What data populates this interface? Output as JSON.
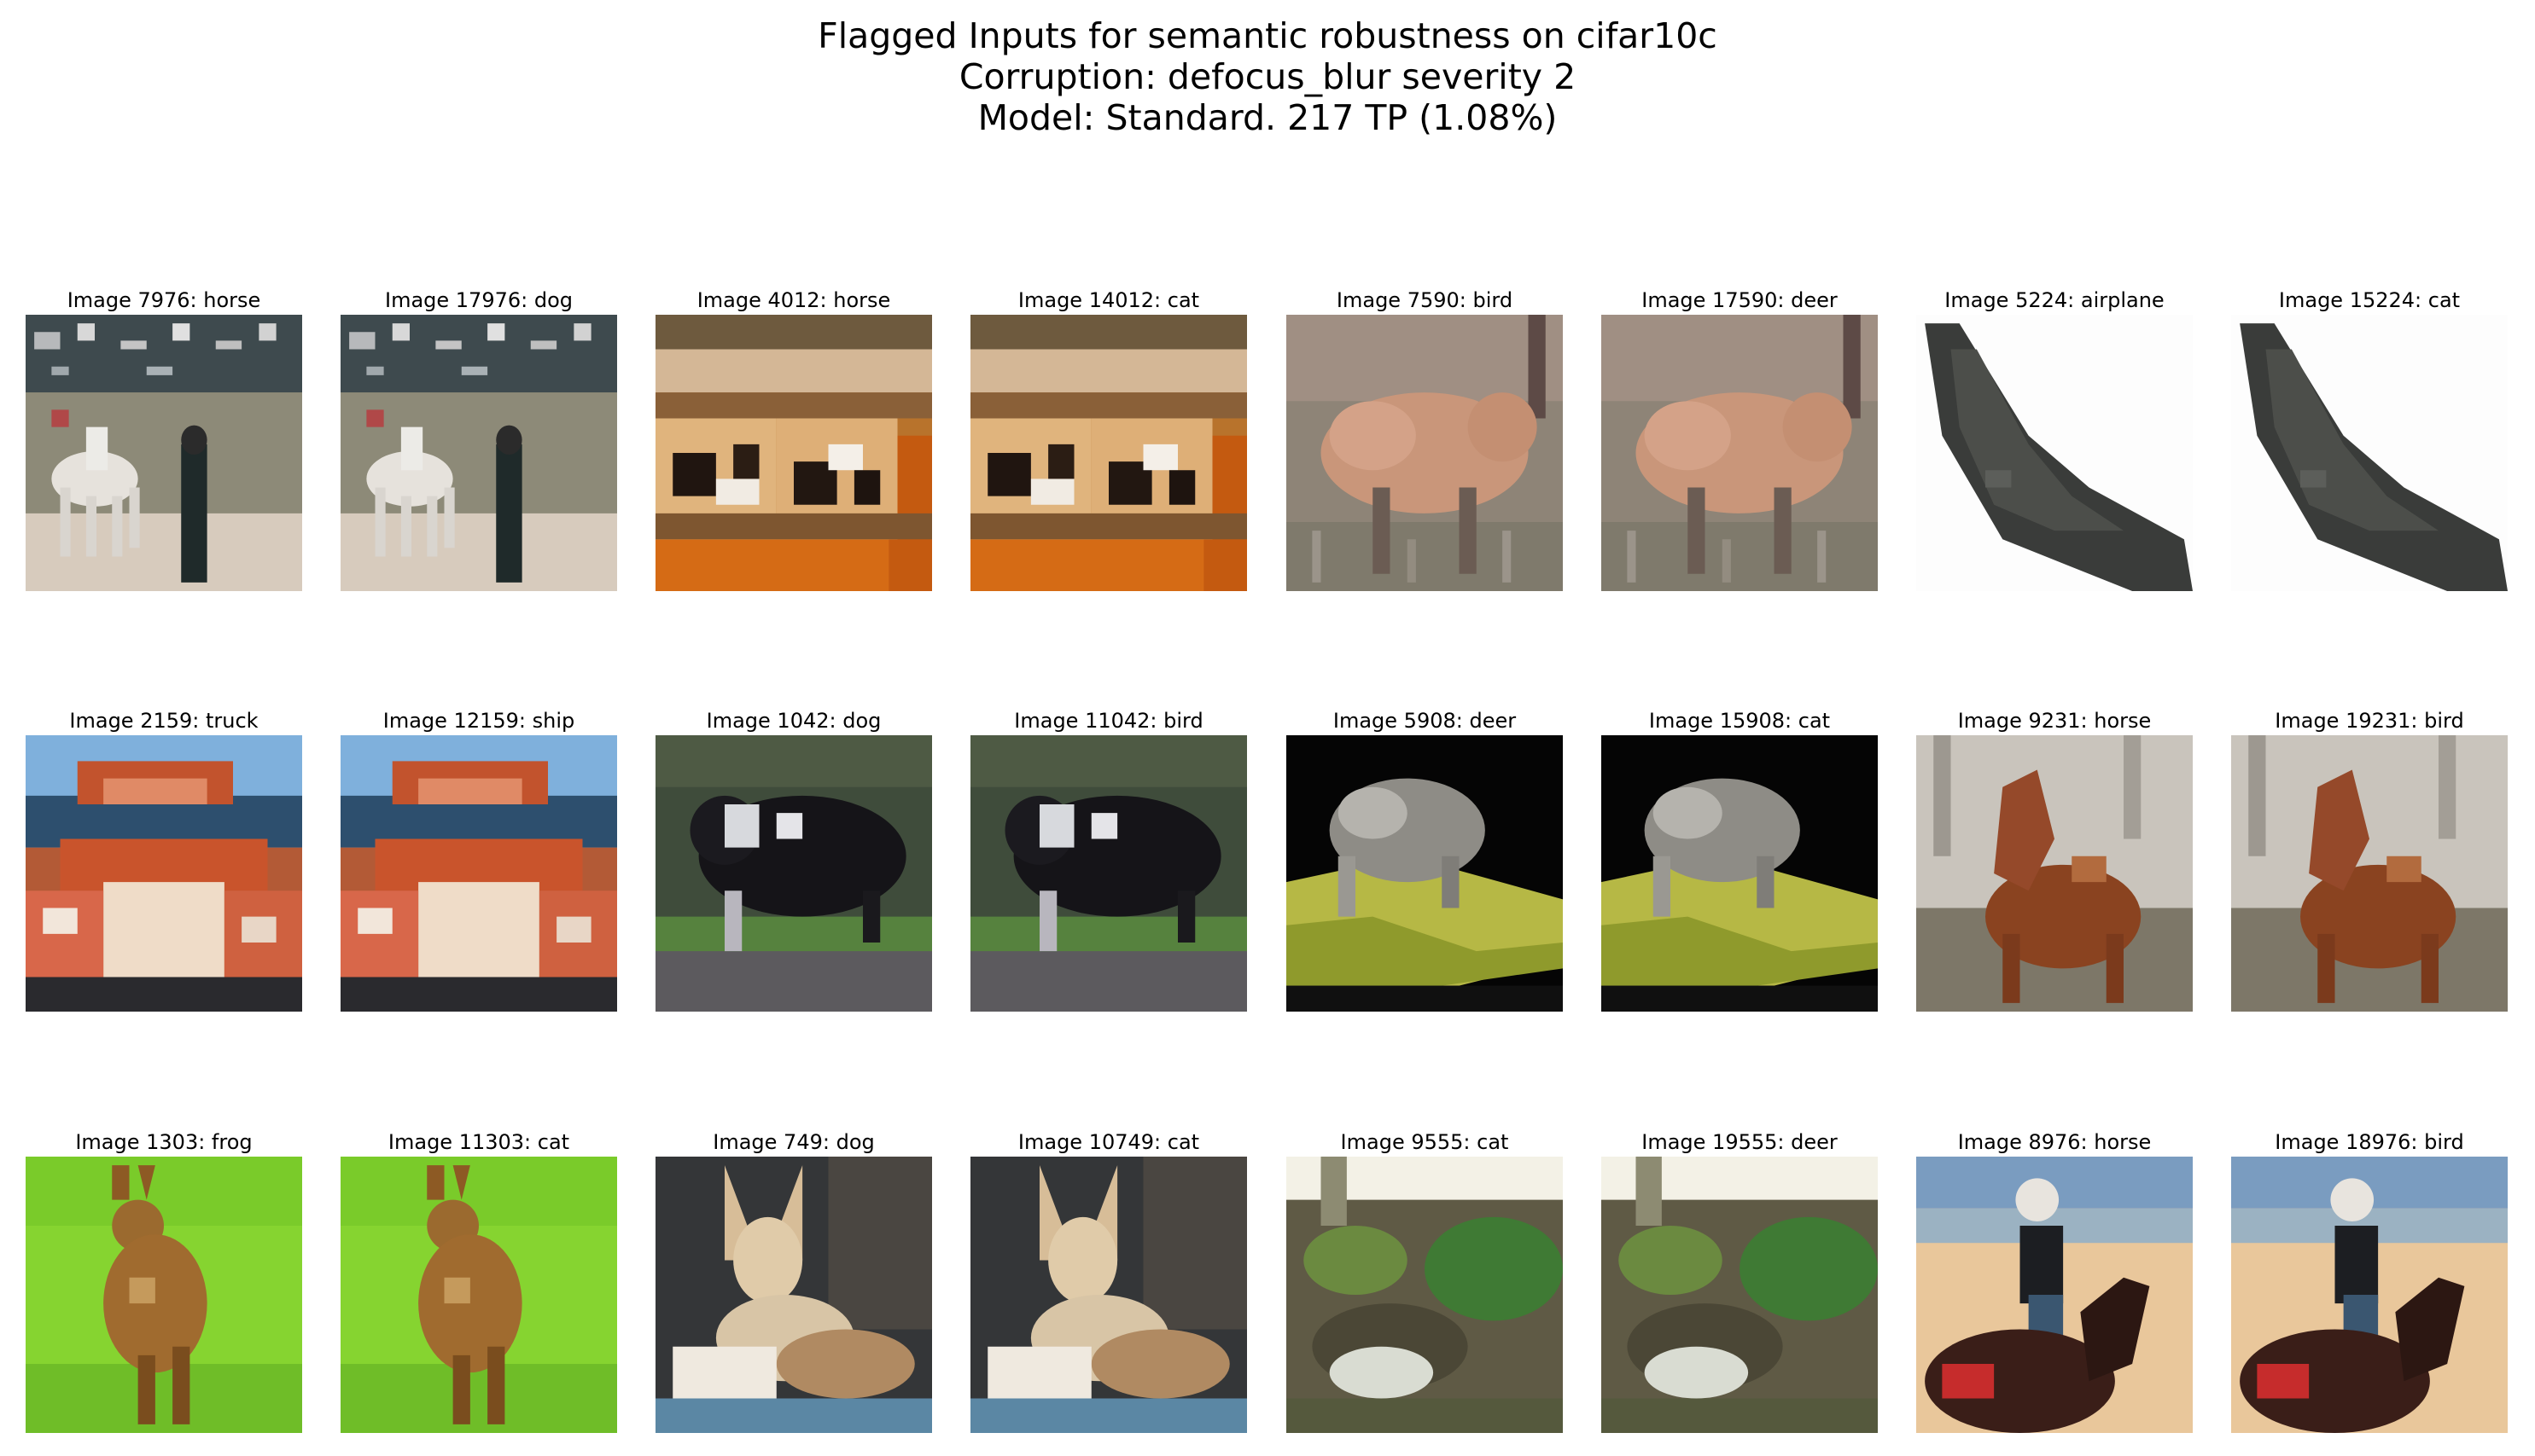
{
  "figure": {
    "title_lines": [
      "Flagged Inputs for semantic robustness on cifar10c",
      "Corruption: defocus_blur severity 2",
      "Model: Standard. 217 TP (1.08%)"
    ]
  },
  "images": [
    {
      "caption": "Image 7976: horse",
      "scene": "horse-rider-crowd"
    },
    {
      "caption": "Image 17976: dog",
      "scene": "horse-rider-crowd"
    },
    {
      "caption": "Image 4012: horse",
      "scene": "toy-horses-orange"
    },
    {
      "caption": "Image 14012: cat",
      "scene": "toy-horses-orange"
    },
    {
      "caption": "Image 7590: bird",
      "scene": "tan-bird-grass"
    },
    {
      "caption": "Image 17590: deer",
      "scene": "tan-bird-grass"
    },
    {
      "caption": "Image 5224: airplane",
      "scene": "dark-plane-white"
    },
    {
      "caption": "Image 15224: cat",
      "scene": "dark-plane-white"
    },
    {
      "caption": "Image 2159: truck",
      "scene": "red-boat-sea"
    },
    {
      "caption": "Image 12159: ship",
      "scene": "red-boat-sea"
    },
    {
      "caption": "Image 1042: dog",
      "scene": "black-dog-grass"
    },
    {
      "caption": "Image 11042: bird",
      "scene": "black-dog-grass"
    },
    {
      "caption": "Image 5908: deer",
      "scene": "grey-animal-yellow"
    },
    {
      "caption": "Image 15908: cat",
      "scene": "grey-animal-yellow"
    },
    {
      "caption": "Image 9231: horse",
      "scene": "brown-horse-trees"
    },
    {
      "caption": "Image 19231: bird",
      "scene": "brown-horse-trees"
    },
    {
      "caption": "Image 1303: frog",
      "scene": "brown-deer-green"
    },
    {
      "caption": "Image 11303: cat",
      "scene": "brown-deer-green"
    },
    {
      "caption": "Image 749: dog",
      "scene": "tan-dog-dark"
    },
    {
      "caption": "Image 10749: cat",
      "scene": "tan-dog-dark"
    },
    {
      "caption": "Image 9555: cat",
      "scene": "blurry-green-white"
    },
    {
      "caption": "Image 19555: deer",
      "scene": "blurry-green-white"
    },
    {
      "caption": "Image 8976: horse",
      "scene": "rider-beach"
    },
    {
      "caption": "Image 18976: bird",
      "scene": "rider-beach"
    }
  ]
}
